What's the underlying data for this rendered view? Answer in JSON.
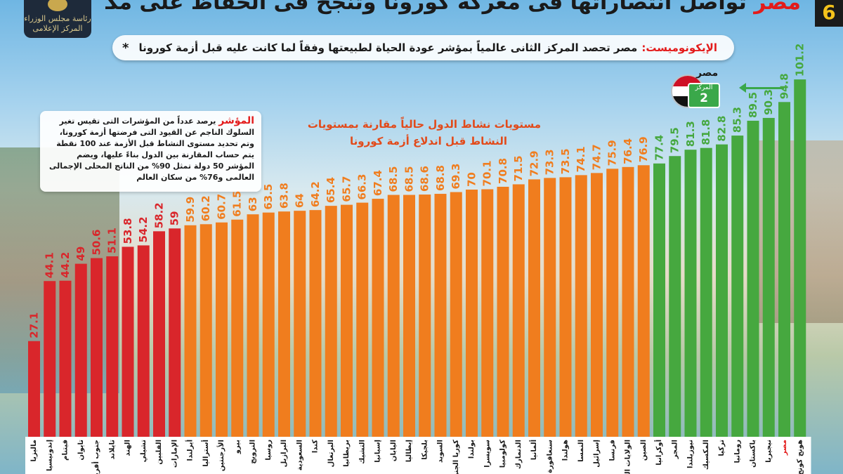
{
  "header": {
    "badge_number": "6",
    "headline_highlight": "مصر",
    "headline_rest": "تواصل انتصاراتها فى معركة كورونا وتنجح فى الحفاظ على مكتسبات الإصلاح الاقتصادى",
    "logo_line1": "رئاسة مجلس الوزراء",
    "logo_line2": "المركز الإعلامى"
  },
  "subtitle": {
    "source": "الإيكونوميست:",
    "text": "مصر تحصد المركز الثانى عالمياً بمؤشر عودة الحياة لطبيعتها وفقاً لما كانت عليه قبل أزمة كورونا",
    "star": "*"
  },
  "note": {
    "title": "المؤشر",
    "text": "يرصد عدداً من المؤشرات التى تقيس تغير السلوك الناجم عن القيود التى فرضتها أزمة كورونا، وتم تحديد مستوى النشاط قبل الأزمة عند 100 نقطة يتم حساب المقارنة بين الدول بناءً عليها، ويضم المؤشر 50 دولة تمثل 90% من الناتج المحلى الإجمالى العالمى و76% من سكان العالم"
  },
  "egypt_card": {
    "name": "مصر",
    "rank_label": "المركز",
    "rank": "2"
  },
  "colors": {
    "red": "#d9262b",
    "orange": "#f07d1e",
    "green": "#46a83f",
    "title_red": "#e31b1b",
    "headline_dark": "#1a1a1a"
  },
  "chart_data": {
    "type": "bar",
    "title_line1": "مستويات نشاط الدول حالياً مقارنة بمستويات",
    "title_line2": "النشاط قبل اندلاع أزمة كورونا",
    "categories": [
      "ماليزيا",
      "إندونيسيا",
      "فيتنام",
      "تايوان",
      "جنوب أفريقيا",
      "تايلاند",
      "الهند",
      "تشيلي",
      "الفلبين",
      "الإمارات",
      "أيرلندا",
      "أستراليا",
      "الأرجنتين",
      "بيرو",
      "النرويج",
      "روسيا",
      "البرازيل",
      "السعودية",
      "كندا",
      "البرتغال",
      "بريطانيا",
      "التشيك",
      "إسبانيا",
      "اليابان",
      "إيطاليا",
      "بلجيكا",
      "السويد",
      "كوريا الجنوبية",
      "بولندا",
      "سويسرا",
      "كولومبيا",
      "الدنمارك",
      "ألمانيا",
      "سنغافورة",
      "هولندا",
      "النمسا",
      "إسرائيل",
      "فرنسا",
      "الولايات المتحدة",
      "الصين",
      "أوكرانيا",
      "المجر",
      "نيوزيلندا",
      "المكسيك",
      "تركيا",
      "رومانيا",
      "باكستان",
      "نيجيريا",
      "مصر",
      "هونج كونج"
    ],
    "values": [
      27.1,
      44.1,
      44.2,
      49,
      50.6,
      51.1,
      53.8,
      54.2,
      58.2,
      59,
      59.9,
      60.2,
      60.7,
      61.5,
      63,
      63.5,
      63.8,
      64,
      64.2,
      65.4,
      65.7,
      66.3,
      67.4,
      68.5,
      68.5,
      68.6,
      68.8,
      69.3,
      70,
      70.1,
      70.8,
      71.5,
      72.9,
      73.3,
      73.5,
      74.1,
      74.7,
      75.9,
      76.4,
      76.9,
      77.4,
      79.5,
      81.3,
      81.8,
      82.8,
      85.3,
      89.5,
      90.3,
      94.8,
      101.2
    ],
    "color_groups": {
      "red_count": 10,
      "orange_count": 30,
      "green_count": 10
    },
    "highlight_category": "مصر",
    "ylim": [
      0,
      105
    ],
    "grid": false,
    "legend": "none"
  }
}
